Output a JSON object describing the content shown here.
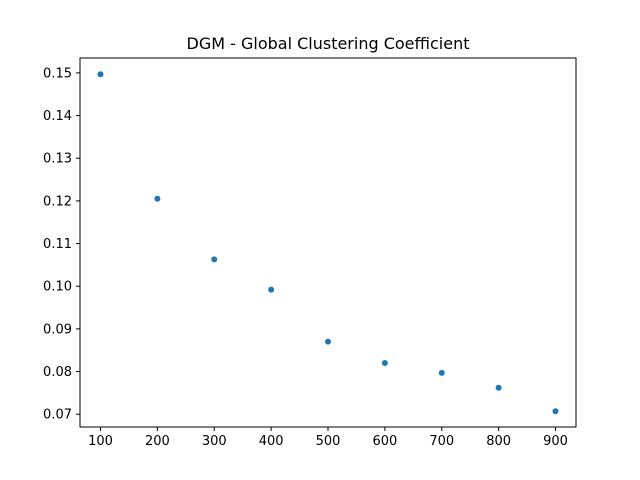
{
  "chart_data": {
    "type": "scatter",
    "title": "DGM - Global Clustering Coefficient",
    "xlabel": "",
    "ylabel": "",
    "x": [
      100,
      200,
      300,
      400,
      500,
      600,
      700,
      800,
      900
    ],
    "y": [
      0.1497,
      0.1205,
      0.1063,
      0.0992,
      0.087,
      0.082,
      0.0797,
      0.0762,
      0.0707
    ],
    "xlim": [
      64,
      936
    ],
    "ylim": [
      0.067,
      0.1535
    ],
    "xticks": [
      100,
      200,
      300,
      400,
      500,
      600,
      700,
      800,
      900
    ],
    "xtick_labels": [
      "100",
      "200",
      "300",
      "400",
      "500",
      "600",
      "700",
      "800",
      "900"
    ],
    "yticks": [
      0.07,
      0.08,
      0.09,
      0.1,
      0.11,
      0.12,
      0.13,
      0.14,
      0.15
    ],
    "ytick_labels": [
      "0.07",
      "0.08",
      "0.09",
      "0.10",
      "0.11",
      "0.12",
      "0.13",
      "0.14",
      "0.15"
    ],
    "grid": false,
    "marker_color": "#1f77b4"
  }
}
